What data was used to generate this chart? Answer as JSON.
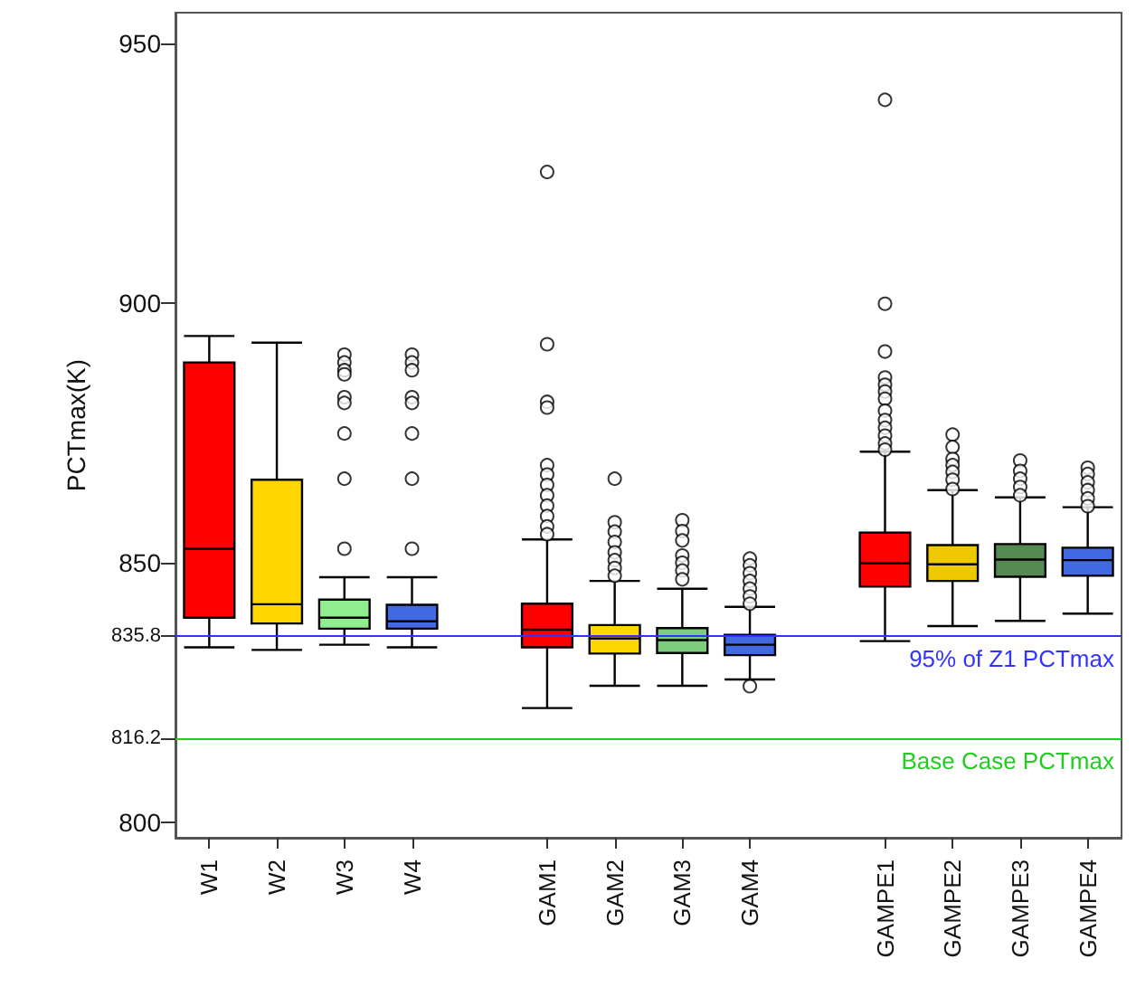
{
  "chart_data": {
    "type": "box",
    "ylabel": "PCTmax(K)",
    "categories": [
      "W1",
      "W2",
      "W3",
      "W4",
      null,
      "GAM1",
      "GAM2",
      "GAM3",
      "GAM4",
      null,
      "GAMPE1",
      "GAMPE2",
      "GAMPE3",
      "GAMPE4"
    ],
    "colors": [
      "#ff0000",
      "#ffd700",
      "#90ee90",
      "#4169e1",
      null,
      "#ff0000",
      "#ffd700",
      "#7ccd7c",
      "#4169e1",
      null,
      "#ff0000",
      "#eec900",
      "#548b54",
      "#4169e1"
    ],
    "boxes": [
      {
        "low": 833.7,
        "q1": 839.4,
        "median": 852.7,
        "q3": 888.6,
        "high": 893.7
      },
      {
        "low": 833.2,
        "q1": 838.3,
        "median": 842.0,
        "q3": 866.0,
        "high": 892.4
      },
      {
        "low": 834.2,
        "q1": 837.3,
        "median": 839.4,
        "q3": 842.9,
        "high": 847.2,
        "outliers": [
          890.1,
          888.6,
          887.1,
          886.3,
          881.9,
          880.8,
          874.9,
          866.2,
          852.7
        ]
      },
      {
        "low": 833.7,
        "q1": 837.3,
        "median": 838.7,
        "q3": 841.9,
        "high": 847.2,
        "outliers": [
          890.1,
          888.6,
          887.1,
          881.9,
          880.8,
          874.9,
          866.2,
          852.7
        ]
      },
      null,
      {
        "low": 822.0,
        "q1": 833.7,
        "median": 837.1,
        "q3": 842.1,
        "high": 854.5,
        "outliers": [
          925.3,
          892.1,
          881.0,
          879.9,
          868.8,
          867,
          865,
          863,
          861,
          859,
          857,
          855.5
        ]
      },
      {
        "low": 826.3,
        "q1": 832.5,
        "median": 835.4,
        "q3": 838.0,
        "high": 846.5,
        "outliers": [
          866.2,
          857.8,
          856,
          854,
          852,
          850.5,
          849,
          847.5
        ]
      },
      {
        "low": 826.3,
        "q1": 832.6,
        "median": 835.1,
        "q3": 837.4,
        "high": 845.0,
        "outliers": [
          858.2,
          856.1,
          854.3,
          851.4,
          850,
          848.5,
          846.8
        ]
      },
      {
        "low": 827.5,
        "q1": 832.2,
        "median": 834.2,
        "q3": 836.1,
        "high": 841.5,
        "outliers": [
          850.8,
          849.5,
          848,
          846.5,
          845,
          843.5,
          842.1,
          826.2
        ]
      },
      null,
      {
        "low": 834.9,
        "q1": 845.4,
        "median": 849.9,
        "q3": 855.8,
        "high": 871.4,
        "outliers": [
          939.2,
          899.9,
          890.7,
          885.7,
          884.3,
          883,
          881.6,
          879.3,
          877.5,
          876,
          874.5,
          873,
          871.8
        ]
      },
      {
        "low": 837.8,
        "q1": 846.5,
        "median": 849.7,
        "q3": 853.4,
        "high": 864.0,
        "outliers": [
          874.7,
          872.3,
          870.0,
          868.8,
          867.5,
          866,
          864.2
        ]
      },
      {
        "low": 838.8,
        "q1": 847.3,
        "median": 850.6,
        "q3": 853.6,
        "high": 862.6,
        "outliers": [
          869.7,
          867.7,
          866.2,
          864.6,
          863.0
        ]
      },
      {
        "low": 840.2,
        "q1": 847.5,
        "median": 850.5,
        "q3": 852.9,
        "high": 860.7,
        "outliers": [
          868.3,
          867.1,
          865.5,
          864,
          862.4,
          860.9
        ]
      }
    ],
    "ylim": [
      797,
      956
    ],
    "yticks": [
      800,
      816.2,
      835.8,
      850,
      900,
      950
    ],
    "grid": false,
    "ref_lines": [
      {
        "axis": "y",
        "value": 835.8,
        "label": "95% of Z1 PCTmax",
        "color": "#3333ff"
      },
      {
        "axis": "y",
        "value": 816.2,
        "label": "Base Case PCTmax",
        "color": "#22cc22"
      }
    ]
  }
}
